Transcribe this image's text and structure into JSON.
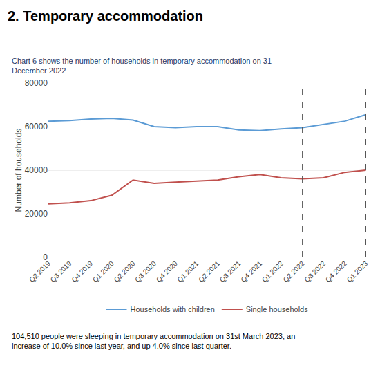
{
  "chart_data": {
    "type": "line",
    "title": "2. Temporary accommodation",
    "subtitle": "Chart 6 shows the number of households in temporary accommodation on 31\nDecember 2022",
    "ylabel": "Number of households",
    "categories": [
      "Q2 2019",
      "Q3 2019",
      "Q4 2019",
      "Q1 2020",
      "Q2 2020",
      "Q3 2020",
      "Q4 2020",
      "Q1 2021",
      "Q2 2021",
      "Q3 2021",
      "Q4 2021",
      "Q1 2022",
      "Q2 2022",
      "Q3 2022",
      "Q4 2022",
      "Q1 2023"
    ],
    "series": [
      {
        "name": "Households with children",
        "color": "#5b9bd5",
        "values": [
          62500,
          62800,
          63500,
          63800,
          63000,
          60000,
          59500,
          60000,
          60000,
          58500,
          58200,
          59000,
          59500,
          61000,
          62500,
          65500
        ]
      },
      {
        "name": "Single households",
        "color": "#c0504d",
        "values": [
          24500,
          25000,
          26000,
          28500,
          35500,
          34000,
          34500,
          35000,
          35500,
          37000,
          38000,
          36500,
          36000,
          36500,
          39000,
          40000
        ]
      }
    ],
    "vertical_lines": [
      "Q2 2022",
      "Q1 2023"
    ],
    "ylim": [
      0,
      80000
    ],
    "yticks": [
      0,
      20000,
      40000,
      60000,
      80000
    ],
    "grid": true,
    "legend": "bottom",
    "annotations": [
      "104,510 people were sleeping in temporary accommodation on 31st March 2023, an\nincrease of 10.0% since last year, and up 4.0% since last quarter."
    ]
  }
}
